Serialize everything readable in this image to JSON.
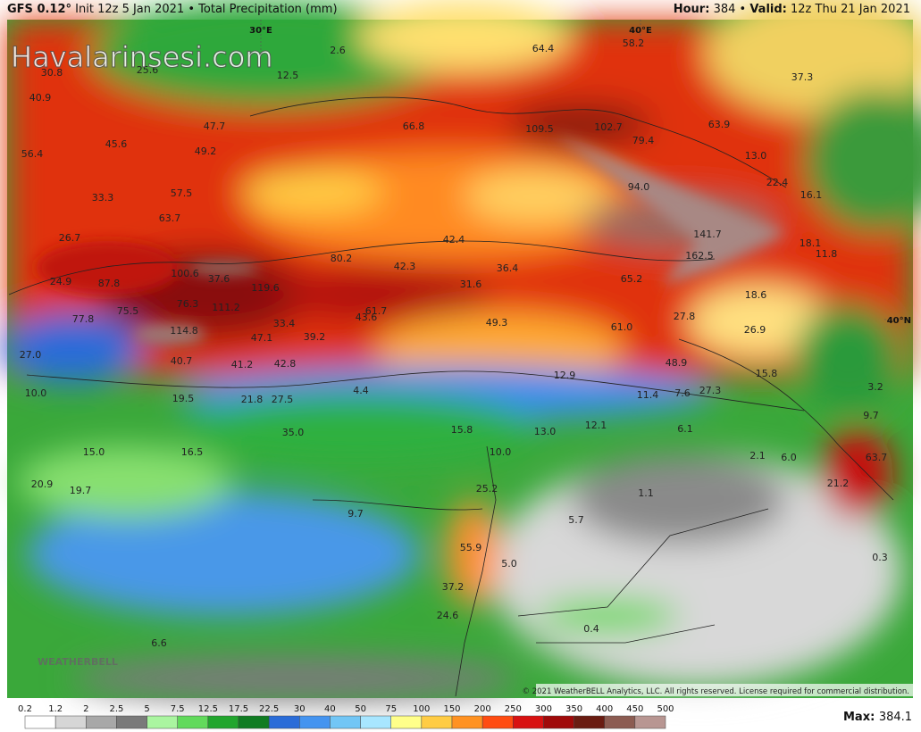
{
  "header": {
    "model": "GFS 0.12°",
    "init": "Init 12z 5 Jan 2021",
    "product": "Total Precipitation (mm)",
    "hour_label": "Hour:",
    "hour": "384",
    "valid_label": "Valid:",
    "valid": "12z Thu 21 Jan 2021"
  },
  "watermark": "Havalarinsesi.com",
  "logo": "WEATHERBELL",
  "grid_labels": [
    "30°E",
    "40°E",
    "40°N"
  ],
  "copyright": "© 2021 WeatherBELL Analytics, LLC. All rights reserved. License required for commercial distribution.",
  "max": {
    "label": "Max:",
    "value": "384.1"
  },
  "map_labels": [
    "30.8",
    "25.6",
    "12.5",
    "2.6",
    "64.4",
    "58.2",
    "37.3",
    "40.9",
    "56.4",
    "45.6",
    "47.7",
    "49.2",
    "66.8",
    "109.5",
    "102.7",
    "79.4",
    "63.9",
    "13.0",
    "33.3",
    "57.5",
    "94.0",
    "22.4",
    "16.1",
    "63.7",
    "26.7",
    "42.4",
    "141.7",
    "18.1",
    "11.8",
    "162.5",
    "80.2",
    "100.6",
    "37.6",
    "42.3",
    "36.4",
    "24.9",
    "87.8",
    "119.6",
    "31.6",
    "65.2",
    "18.6",
    "76.3",
    "111.2",
    "75.5",
    "61.7",
    "43.6",
    "49.3",
    "61.0",
    "27.8",
    "77.8",
    "114.8",
    "33.4",
    "39.2",
    "47.1",
    "26.9",
    "27.0",
    "40.7",
    "41.2",
    "42.8",
    "48.9",
    "15.8",
    "19.5",
    "21.8",
    "27.5",
    "4.4",
    "12.9",
    "11.4",
    "7.6",
    "27.3",
    "3.2",
    "10.0",
    "35.0",
    "15.8",
    "13.0",
    "12.1",
    "6.1",
    "2.1",
    "6.0",
    "63.7",
    "10.0",
    "15.0",
    "16.5",
    "9.7",
    "21.2",
    "20.9",
    "19.7",
    "25.2",
    "1.1",
    "9.7",
    "5.7",
    "55.9",
    "5.0",
    "0.3",
    "37.2",
    "24.6",
    "0.4",
    "6.6"
  ],
  "legend": {
    "labels": [
      "0.2",
      "1.2",
      "2",
      "2.5",
      "5",
      "7.5",
      "12.5",
      "17.5",
      "22.5",
      "30",
      "40",
      "50",
      "75",
      "100",
      "150",
      "200",
      "250",
      "300",
      "350",
      "400",
      "450",
      "500"
    ],
    "colors": [
      "#ffffff",
      "#d6d6d6",
      "#a8a8a8",
      "#7a7a7a",
      "#aaf5a0",
      "#62da5c",
      "#22a62e",
      "#107c22",
      "#2a6cd8",
      "#4494f0",
      "#72c6f5",
      "#a8e6ff",
      "#ffff8a",
      "#ffcc44",
      "#ff9222",
      "#ff4c12",
      "#d81212",
      "#a00a0a",
      "#6a1c12",
      "#8c5c52",
      "#b89692"
    ]
  }
}
